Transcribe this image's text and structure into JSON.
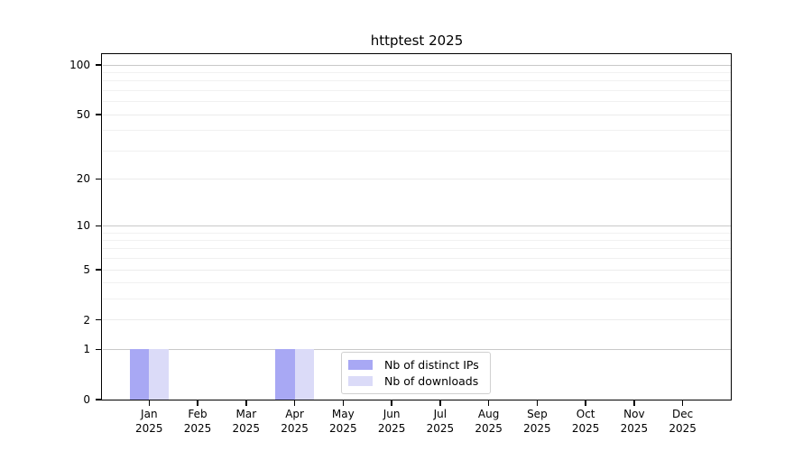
{
  "figure": {
    "title": "httptest 2025"
  },
  "chart_data": {
    "type": "bar",
    "title": "httptest 2025",
    "categories": [
      "Jan",
      "Feb",
      "Mar",
      "Apr",
      "May",
      "Jun",
      "Jul",
      "Aug",
      "Sep",
      "Oct",
      "Nov",
      "Dec"
    ],
    "year_label": "2025",
    "series": [
      {
        "name": "Nb of distinct IPs",
        "color": "#a8a8f4",
        "values": [
          1,
          0,
          0,
          1,
          0,
          0,
          0,
          0,
          0,
          0,
          0,
          0
        ]
      },
      {
        "name": "Nb of downloads",
        "color": "#dbdbf8",
        "values": [
          1,
          0,
          0,
          1,
          0,
          0,
          0,
          0,
          0,
          0,
          0,
          0
        ]
      }
    ],
    "xlabel": "",
    "ylabel": "",
    "yscale": "log1p",
    "ylim": [
      0,
      100
    ],
    "y_major_ticks": [
      0,
      1,
      2,
      5,
      10,
      20,
      50,
      100
    ],
    "y_minor_gridlines": [
      3,
      4,
      6,
      7,
      8,
      9,
      30,
      40,
      60,
      70,
      80,
      90
    ],
    "y_decade_gridlines": [
      1,
      10,
      100
    ],
    "grid": "horizontal",
    "legend_position": "inside-bottom-center"
  },
  "colors": {
    "background": "#ffffff",
    "axis": "#000000",
    "grid_minor": "#f1f1f1",
    "grid_major": "#ececec",
    "grid_decade": "#c9c9c9",
    "bar_distinct_ips": "#a8a8f4",
    "bar_downloads": "#dbdbf8",
    "legend_border": "#d0d0d0"
  }
}
